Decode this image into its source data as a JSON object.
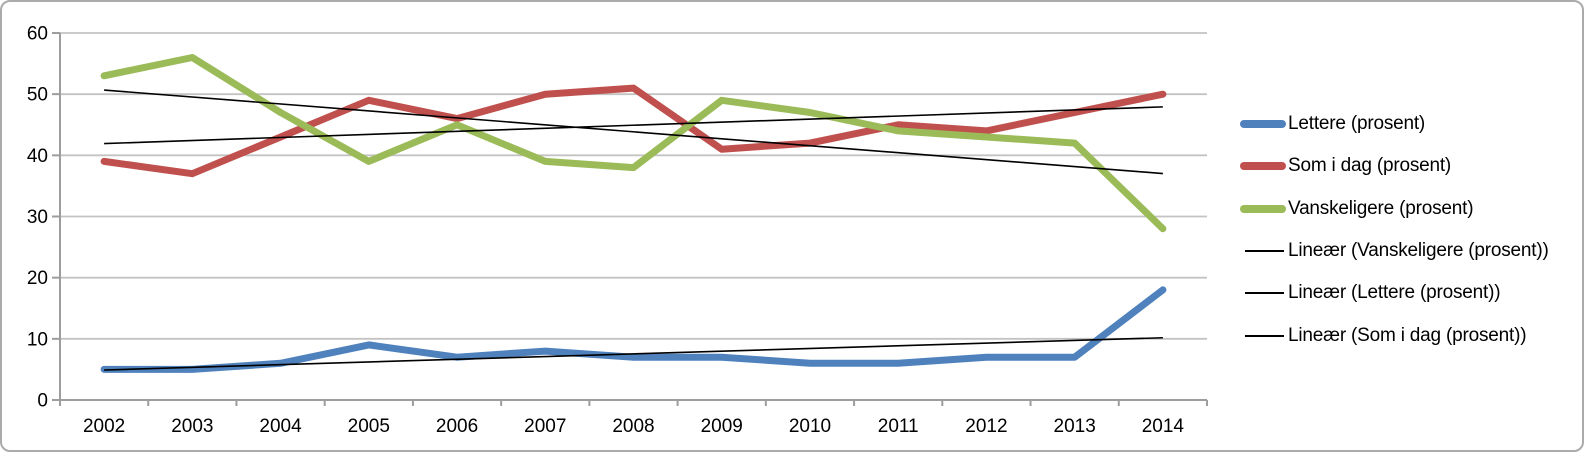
{
  "chart_data": {
    "type": "line",
    "title": "",
    "xlabel": "",
    "ylabel": "",
    "grid": true,
    "legend_position": "right",
    "categories": [
      "2002",
      "2003",
      "2004",
      "2005",
      "2006",
      "2007",
      "2008",
      "2009",
      "2010",
      "2011",
      "2012",
      "2013",
      "2014"
    ],
    "series": [
      {
        "name": "Lettere (prosent)",
        "color": "#4F81BD",
        "values": [
          5,
          5,
          6,
          9,
          7,
          8,
          7,
          7,
          6,
          6,
          7,
          7,
          18
        ]
      },
      {
        "name": "Som i dag (prosent)",
        "color": "#C0504D",
        "values": [
          39,
          37,
          43,
          49,
          46,
          50,
          51,
          41,
          42,
          45,
          44,
          47,
          50
        ]
      },
      {
        "name": "Vanskeligere (prosent)",
        "color": "#9BBB59",
        "values": [
          53,
          56,
          47,
          39,
          45,
          39,
          38,
          49,
          47,
          44,
          43,
          42,
          28
        ]
      }
    ],
    "trendlines": [
      {
        "name": "Lineær (Vanskeligere (prosent))",
        "series": "Vanskeligere (prosent)",
        "color": "#000000"
      },
      {
        "name": "Lineær (Lettere (prosent))",
        "series": "Lettere (prosent)",
        "color": "#000000"
      },
      {
        "name": "Lineær (Som i dag (prosent))",
        "series": "Som i dag (prosent)",
        "color": "#000000"
      }
    ],
    "y_axis": {
      "min": 0,
      "max": 60,
      "step": 10,
      "ticks": [
        "0",
        "10",
        "20",
        "30",
        "40",
        "50",
        "60"
      ]
    },
    "ylim": [
      0,
      60
    ],
    "legend": [
      {
        "label": "Lettere (prosent)",
        "swatch": "thick",
        "color": "#4F81BD"
      },
      {
        "label": "Som i dag (prosent)",
        "swatch": "thick",
        "color": "#C0504D"
      },
      {
        "label": "Vanskeligere (prosent)",
        "swatch": "thick",
        "color": "#9BBB59"
      },
      {
        "label": "Lineær (Vanskeligere (prosent))",
        "swatch": "thin",
        "color": "#000000"
      },
      {
        "label": "Lineær (Lettere (prosent))",
        "swatch": "thin",
        "color": "#000000"
      },
      {
        "label": "Lineær (Som i dag (prosent))",
        "swatch": "thin",
        "color": "#000000"
      }
    ],
    "colors": {
      "background": "#FFFFFF",
      "frame_border": "#ABABAB",
      "gridline": "#C3C3C3",
      "axis": "#9D9D9D",
      "trendline": "#000000",
      "text": "#000000"
    }
  }
}
